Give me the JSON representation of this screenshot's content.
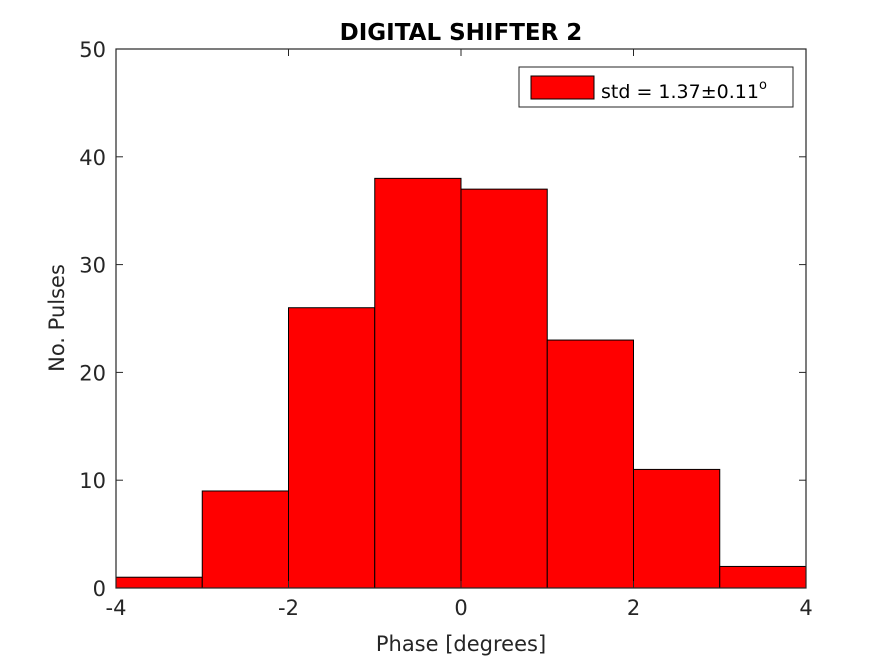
{
  "chart_data": {
    "type": "bar",
    "title": "DIGITAL SHIFTER 2",
    "xlabel": "Phase [degrees]",
    "ylabel": "No. Pulses",
    "bin_edges": [
      -4,
      -3,
      -2,
      -1,
      0,
      1,
      2,
      3,
      4
    ],
    "values": [
      1,
      9,
      26,
      38,
      37,
      23,
      11,
      2
    ],
    "xlim": [
      -4,
      4
    ],
    "ylim": [
      0,
      50
    ],
    "xticks": [
      -4,
      -2,
      0,
      2,
      4
    ],
    "yticks": [
      0,
      10,
      20,
      30,
      40,
      50
    ],
    "bar_color": "#ff0000",
    "edge_color": "#000000",
    "grid": false,
    "legend": {
      "placement": "top-right",
      "entry": {
        "text": "std = 1.37±0.11",
        "superscript": "o"
      }
    }
  }
}
